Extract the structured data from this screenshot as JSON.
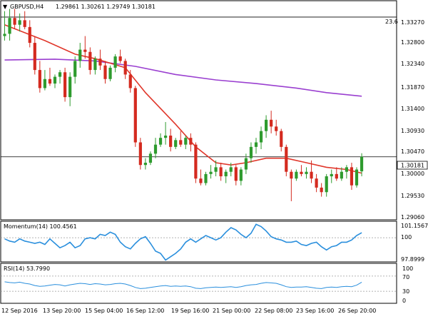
{
  "header": {
    "symbol": "GBPUSD,H4",
    "ohlc": "1.29861 1.30261 1.29749 1.30181"
  },
  "main_panel": {
    "price_labels": [
      "1.33270",
      "1.32800",
      "1.32340",
      "1.31870",
      "1.31400",
      "1.30930",
      "1.30470",
      "1.30000",
      "1.29530",
      "1.29060"
    ],
    "fib_label": "23.6",
    "current_price_label": "1.30181"
  },
  "momentum_panel": {
    "title": "Momentum(14) 100.4561",
    "labels": [
      "101.1567",
      "100",
      "97.8999"
    ]
  },
  "rsi_panel": {
    "title": "RSI(14) 53.7990",
    "labels": [
      "100",
      "70",
      "30",
      "0"
    ]
  },
  "time_axis": {
    "labels": [
      "12 Sep 2016",
      "13 Sep 20:00",
      "15 Sep 04:00",
      "16 Sep 12:00",
      "19 Sep 16:00",
      "21 Sep 00:00",
      "22 Sep 08:00",
      "23 Sep 16:00",
      "26 Sep 20:00"
    ]
  },
  "colors": {
    "bull": "#2e9b2e",
    "bear": "#d42a1f",
    "ma_fast": "#e0362a",
    "ma_slow": "#9a3fd0",
    "indicator": "#2a8fdd"
  },
  "chart_data": {
    "type": "candlestick",
    "title": "GBPUSD,H4",
    "ylim": [
      1.2882,
      1.336
    ],
    "ohlc": [
      [
        1.3285,
        1.334,
        1.3275,
        1.329
      ],
      [
        1.329,
        1.3345,
        1.3275,
        1.3325
      ],
      [
        1.3325,
        1.3345,
        1.33,
        1.331
      ],
      [
        1.331,
        1.3335,
        1.3295,
        1.332
      ],
      [
        1.332,
        1.334,
        1.33,
        1.3305
      ],
      [
        1.3305,
        1.332,
        1.326,
        1.327
      ],
      [
        1.327,
        1.3285,
        1.32,
        1.321
      ],
      [
        1.321,
        1.323,
        1.316,
        1.317
      ],
      [
        1.317,
        1.321,
        1.3165,
        1.319
      ],
      [
        1.319,
        1.3215,
        1.3175,
        1.318
      ],
      [
        1.318,
        1.32,
        1.317,
        1.3195
      ],
      [
        1.3195,
        1.321,
        1.318,
        1.3205
      ],
      [
        1.3205,
        1.3215,
        1.314,
        1.315
      ],
      [
        1.315,
        1.3205,
        1.313,
        1.3195
      ],
      [
        1.3195,
        1.324,
        1.318,
        1.323
      ],
      [
        1.323,
        1.327,
        1.3215,
        1.3255
      ],
      [
        1.3255,
        1.3285,
        1.3235,
        1.325
      ],
      [
        1.325,
        1.326,
        1.32,
        1.321
      ],
      [
        1.321,
        1.324,
        1.32,
        1.3235
      ],
      [
        1.3235,
        1.3255,
        1.321,
        1.322
      ],
      [
        1.322,
        1.323,
        1.318,
        1.319
      ],
      [
        1.319,
        1.322,
        1.3185,
        1.3215
      ],
      [
        1.3215,
        1.3245,
        1.3205,
        1.324
      ],
      [
        1.324,
        1.3255,
        1.3225,
        1.323
      ],
      [
        1.323,
        1.3235,
        1.319,
        1.32
      ],
      [
        1.32,
        1.321,
        1.316,
        1.317
      ],
      [
        1.317,
        1.3175,
        1.304,
        1.305
      ],
      [
        1.305,
        1.306,
        1.299,
        1.3
      ],
      [
        1.3,
        1.3015,
        1.299,
        1.3005
      ],
      [
        1.3005,
        1.303,
        1.3,
        1.3025
      ],
      [
        1.3025,
        1.306,
        1.3015,
        1.3045
      ],
      [
        1.3045,
        1.307,
        1.304,
        1.306
      ],
      [
        1.306,
        1.3095,
        1.3045,
        1.3065
      ],
      [
        1.3065,
        1.308,
        1.303,
        1.304
      ],
      [
        1.304,
        1.306,
        1.3035,
        1.3055
      ],
      [
        1.3055,
        1.3075,
        1.304,
        1.3045
      ],
      [
        1.3045,
        1.3065,
        1.3035,
        1.306
      ],
      [
        1.306,
        1.307,
        1.303,
        1.3045
      ],
      [
        1.3045,
        1.305,
        1.296,
        1.297
      ],
      [
        1.297,
        1.299,
        1.2955,
        1.296
      ],
      [
        1.296,
        1.2985,
        1.2955,
        1.298
      ],
      [
        1.298,
        1.3,
        1.297,
        1.2985
      ],
      [
        1.2985,
        1.301,
        1.2975,
        1.2995
      ],
      [
        1.2995,
        1.3005,
        1.2965,
        1.2975
      ],
      [
        1.2975,
        1.299,
        1.296,
        1.2985
      ],
      [
        1.2985,
        1.3005,
        1.2975,
        1.2995
      ],
      [
        1.2995,
        1.3,
        1.2955,
        1.2965
      ],
      [
        1.2965,
        1.2995,
        1.2955,
        1.299
      ],
      [
        1.299,
        1.3025,
        1.298,
        1.3015
      ],
      [
        1.3015,
        1.305,
        1.3005,
        1.304
      ],
      [
        1.304,
        1.306,
        1.3025,
        1.305
      ],
      [
        1.305,
        1.3085,
        1.3035,
        1.3075
      ],
      [
        1.3075,
        1.311,
        1.306,
        1.31
      ],
      [
        1.31,
        1.312,
        1.307,
        1.3085
      ],
      [
        1.3085,
        1.31,
        1.3065,
        1.3075
      ],
      [
        1.3075,
        1.308,
        1.303,
        1.304
      ],
      [
        1.304,
        1.3045,
        1.2975,
        1.2985
      ],
      [
        1.2985,
        1.299,
        1.292,
        1.297
      ],
      [
        1.297,
        1.299,
        1.2965,
        1.2985
      ],
      [
        1.2985,
        1.3,
        1.2975,
        1.298
      ],
      [
        1.298,
        1.2995,
        1.297,
        1.2985
      ],
      [
        1.2985,
        1.301,
        1.296,
        1.297
      ],
      [
        1.297,
        1.298,
        1.294,
        1.295
      ],
      [
        1.295,
        1.296,
        1.293,
        1.294
      ],
      [
        1.294,
        1.298,
        1.293,
        1.2975
      ],
      [
        1.2975,
        1.299,
        1.296,
        1.298
      ],
      [
        1.298,
        1.2995,
        1.2965,
        1.297
      ],
      [
        1.297,
        1.2995,
        1.2965,
        1.2985
      ],
      [
        1.2985,
        1.3,
        1.297,
        1.2995
      ],
      [
        1.2995,
        1.3005,
        1.2945,
        1.2955
      ],
      [
        1.2955,
        1.2995,
        1.295,
        1.299
      ],
      [
        1.2986,
        1.3026,
        1.2975,
        1.3018
      ]
    ],
    "ma_fast": [
      [
        0,
        1.331
      ],
      [
        8,
        1.3275
      ],
      [
        14,
        1.3245
      ],
      [
        18,
        1.3235
      ],
      [
        24,
        1.3215
      ],
      [
        28,
        1.316
      ],
      [
        34,
        1.309
      ],
      [
        38,
        1.304
      ],
      [
        42,
        1.3005
      ],
      [
        45,
        1.3
      ],
      [
        48,
        1.3005
      ],
      [
        52,
        1.3015
      ],
      [
        56,
        1.3015
      ],
      [
        60,
        1.3005
      ],
      [
        64,
        1.2995
      ],
      [
        68,
        1.299
      ],
      [
        71,
        1.2982
      ]
    ],
    "ma_slow": [
      [
        0,
        1.3232
      ],
      [
        10,
        1.3234
      ],
      [
        18,
        1.323
      ],
      [
        26,
        1.3218
      ],
      [
        34,
        1.32
      ],
      [
        42,
        1.3188
      ],
      [
        50,
        1.318
      ],
      [
        58,
        1.317
      ],
      [
        64,
        1.316
      ],
      [
        71,
        1.3152
      ]
    ],
    "momentum": [
      99.9,
      99.7,
      99.6,
      99.9,
      99.7,
      99.6,
      99.5,
      99.6,
      99.4,
      99.9,
      99.5,
      99.1,
      99.3,
      99.6,
      99.1,
      99.3,
      99.9,
      100.0,
      99.9,
      100.3,
      100.2,
      100.5,
      100.3,
      99.6,
      99.2,
      99.0,
      99.5,
      99.9,
      100.1,
      99.5,
      98.8,
      98.6,
      98.0,
      98.3,
      98.6,
      99.0,
      99.6,
      99.9,
      99.6,
      99.9,
      100.2,
      100.0,
      99.8,
      100.0,
      100.5,
      100.9,
      100.7,
      100.3,
      100.0,
      100.4,
      101.2,
      101.0,
      100.6,
      100.1,
      99.9,
      99.8,
      99.6,
      99.6,
      99.7,
      99.4,
      99.3,
      99.5,
      99.6,
      99.2,
      98.9,
      99.2,
      99.3,
      99.6,
      99.6,
      99.8,
      100.2,
      100.45
    ],
    "rsi": [
      55,
      53,
      52,
      54,
      51,
      49,
      45,
      43,
      44,
      46,
      48,
      47,
      44,
      47,
      49,
      51,
      50,
      48,
      50,
      49,
      47,
      48,
      50,
      51,
      49,
      45,
      40,
      37,
      38,
      40,
      42,
      44,
      45,
      43,
      44,
      43,
      44,
      42,
      38,
      37,
      39,
      40,
      41,
      40,
      41,
      42,
      40,
      42,
      45,
      47,
      48,
      51,
      53,
      52,
      51,
      47,
      42,
      40,
      41,
      41,
      42,
      40,
      38,
      37,
      40,
      41,
      40,
      42,
      43,
      42,
      46,
      54
    ],
    "momentum_ylim": [
      97.8999,
      101.35
    ],
    "rsi_ylim": [
      0,
      100
    ],
    "rsi_levels": [
      70,
      30
    ],
    "hlines": [
      1.3327,
      1.30181
    ]
  }
}
